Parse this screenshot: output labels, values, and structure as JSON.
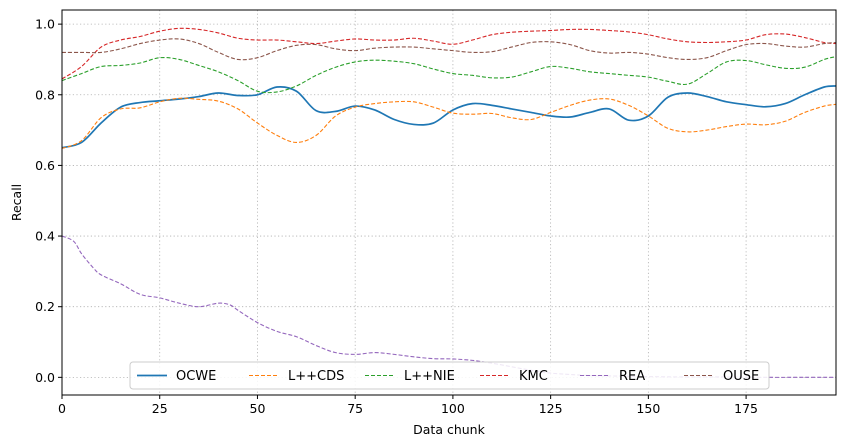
{
  "chart_data": {
    "type": "line",
    "title": "",
    "xlabel": "Data chunk",
    "ylabel": "Recall",
    "xlim": [
      0,
      198
    ],
    "ylim": [
      -0.05,
      1.04
    ],
    "xticks": [
      0,
      25,
      50,
      75,
      100,
      125,
      150,
      175
    ],
    "xtick_labels": [
      "0",
      "25",
      "50",
      "75",
      "100",
      "125",
      "150",
      "175"
    ],
    "yticks": [
      0.0,
      0.2,
      0.4,
      0.6,
      0.8,
      1.0
    ],
    "ytick_labels": [
      "0.0",
      "0.2",
      "0.4",
      "0.6",
      "0.8",
      "1.0"
    ],
    "grid": true,
    "legend_position": "bottom-center",
    "series": [
      {
        "name": "OCWE",
        "color": "#1f77b4",
        "style": "solid",
        "points": [
          [
            0,
            0.65
          ],
          [
            5,
            0.665
          ],
          [
            10,
            0.72
          ],
          [
            15,
            0.765
          ],
          [
            20,
            0.778
          ],
          [
            25,
            0.783
          ],
          [
            30,
            0.788
          ],
          [
            35,
            0.795
          ],
          [
            40,
            0.805
          ],
          [
            45,
            0.798
          ],
          [
            50,
            0.8
          ],
          [
            55,
            0.822
          ],
          [
            60,
            0.81
          ],
          [
            65,
            0.755
          ],
          [
            70,
            0.753
          ],
          [
            75,
            0.768
          ],
          [
            80,
            0.757
          ],
          [
            85,
            0.73
          ],
          [
            90,
            0.716
          ],
          [
            95,
            0.72
          ],
          [
            100,
            0.757
          ],
          [
            105,
            0.775
          ],
          [
            110,
            0.77
          ],
          [
            115,
            0.76
          ],
          [
            120,
            0.75
          ],
          [
            125,
            0.74
          ],
          [
            130,
            0.737
          ],
          [
            135,
            0.75
          ],
          [
            140,
            0.76
          ],
          [
            145,
            0.728
          ],
          [
            150,
            0.74
          ],
          [
            155,
            0.793
          ],
          [
            160,
            0.805
          ],
          [
            165,
            0.795
          ],
          [
            170,
            0.78
          ],
          [
            175,
            0.772
          ],
          [
            180,
            0.766
          ],
          [
            185,
            0.775
          ],
          [
            190,
            0.8
          ],
          [
            195,
            0.822
          ],
          [
            198,
            0.825
          ]
        ]
      },
      {
        "name": "L++CDS",
        "color": "#ff7f0e",
        "style": "dashed",
        "points": [
          [
            0,
            0.648
          ],
          [
            5,
            0.67
          ],
          [
            10,
            0.735
          ],
          [
            15,
            0.76
          ],
          [
            20,
            0.763
          ],
          [
            25,
            0.78
          ],
          [
            30,
            0.79
          ],
          [
            35,
            0.787
          ],
          [
            40,
            0.782
          ],
          [
            45,
            0.76
          ],
          [
            50,
            0.72
          ],
          [
            55,
            0.685
          ],
          [
            60,
            0.665
          ],
          [
            65,
            0.685
          ],
          [
            70,
            0.74
          ],
          [
            75,
            0.765
          ],
          [
            80,
            0.775
          ],
          [
            85,
            0.78
          ],
          [
            90,
            0.78
          ],
          [
            95,
            0.765
          ],
          [
            100,
            0.748
          ],
          [
            105,
            0.745
          ],
          [
            110,
            0.747
          ],
          [
            115,
            0.735
          ],
          [
            120,
            0.73
          ],
          [
            125,
            0.75
          ],
          [
            130,
            0.77
          ],
          [
            135,
            0.785
          ],
          [
            140,
            0.788
          ],
          [
            145,
            0.77
          ],
          [
            150,
            0.74
          ],
          [
            155,
            0.705
          ],
          [
            160,
            0.695
          ],
          [
            165,
            0.7
          ],
          [
            170,
            0.71
          ],
          [
            175,
            0.717
          ],
          [
            180,
            0.715
          ],
          [
            185,
            0.725
          ],
          [
            190,
            0.75
          ],
          [
            195,
            0.768
          ],
          [
            198,
            0.773
          ]
        ]
      },
      {
        "name": "L++NIE",
        "color": "#2ca02c",
        "style": "dashed",
        "points": [
          [
            0,
            0.84
          ],
          [
            5,
            0.86
          ],
          [
            10,
            0.88
          ],
          [
            15,
            0.883
          ],
          [
            20,
            0.89
          ],
          [
            25,
            0.905
          ],
          [
            30,
            0.9
          ],
          [
            35,
            0.883
          ],
          [
            40,
            0.865
          ],
          [
            45,
            0.84
          ],
          [
            50,
            0.81
          ],
          [
            55,
            0.808
          ],
          [
            60,
            0.825
          ],
          [
            65,
            0.855
          ],
          [
            70,
            0.878
          ],
          [
            75,
            0.893
          ],
          [
            80,
            0.898
          ],
          [
            85,
            0.895
          ],
          [
            90,
            0.888
          ],
          [
            95,
            0.873
          ],
          [
            100,
            0.86
          ],
          [
            105,
            0.855
          ],
          [
            110,
            0.848
          ],
          [
            115,
            0.85
          ],
          [
            120,
            0.865
          ],
          [
            125,
            0.88
          ],
          [
            130,
            0.875
          ],
          [
            135,
            0.865
          ],
          [
            140,
            0.86
          ],
          [
            145,
            0.855
          ],
          [
            150,
            0.85
          ],
          [
            155,
            0.838
          ],
          [
            160,
            0.83
          ],
          [
            165,
            0.86
          ],
          [
            170,
            0.893
          ],
          [
            175,
            0.897
          ],
          [
            180,
            0.885
          ],
          [
            185,
            0.875
          ],
          [
            190,
            0.878
          ],
          [
            195,
            0.9
          ],
          [
            198,
            0.908
          ]
        ]
      },
      {
        "name": "KMC",
        "color": "#d62728",
        "style": "dashed",
        "points": [
          [
            0,
            0.845
          ],
          [
            5,
            0.88
          ],
          [
            10,
            0.935
          ],
          [
            15,
            0.955
          ],
          [
            20,
            0.965
          ],
          [
            25,
            0.98
          ],
          [
            30,
            0.988
          ],
          [
            35,
            0.985
          ],
          [
            40,
            0.975
          ],
          [
            45,
            0.96
          ],
          [
            50,
            0.955
          ],
          [
            55,
            0.955
          ],
          [
            60,
            0.95
          ],
          [
            65,
            0.945
          ],
          [
            70,
            0.952
          ],
          [
            75,
            0.958
          ],
          [
            80,
            0.955
          ],
          [
            85,
            0.955
          ],
          [
            90,
            0.96
          ],
          [
            95,
            0.952
          ],
          [
            100,
            0.943
          ],
          [
            105,
            0.955
          ],
          [
            110,
            0.97
          ],
          [
            115,
            0.977
          ],
          [
            120,
            0.98
          ],
          [
            125,
            0.982
          ],
          [
            130,
            0.985
          ],
          [
            135,
            0.985
          ],
          [
            140,
            0.982
          ],
          [
            145,
            0.978
          ],
          [
            150,
            0.97
          ],
          [
            155,
            0.958
          ],
          [
            160,
            0.95
          ],
          [
            165,
            0.948
          ],
          [
            170,
            0.95
          ],
          [
            175,
            0.955
          ],
          [
            180,
            0.97
          ],
          [
            185,
            0.972
          ],
          [
            190,
            0.962
          ],
          [
            195,
            0.948
          ],
          [
            198,
            0.945
          ]
        ]
      },
      {
        "name": "REA",
        "color": "#9467bd",
        "style": "dashed",
        "points": [
          [
            0,
            0.4
          ],
          [
            3,
            0.385
          ],
          [
            5,
            0.35
          ],
          [
            8,
            0.31
          ],
          [
            10,
            0.29
          ],
          [
            15,
            0.265
          ],
          [
            20,
            0.235
          ],
          [
            25,
            0.225
          ],
          [
            30,
            0.21
          ],
          [
            35,
            0.2
          ],
          [
            40,
            0.21
          ],
          [
            43,
            0.205
          ],
          [
            45,
            0.19
          ],
          [
            50,
            0.155
          ],
          [
            55,
            0.13
          ],
          [
            60,
            0.115
          ],
          [
            65,
            0.09
          ],
          [
            70,
            0.07
          ],
          [
            75,
            0.065
          ],
          [
            80,
            0.07
          ],
          [
            85,
            0.065
          ],
          [
            90,
            0.058
          ],
          [
            95,
            0.053
          ],
          [
            100,
            0.052
          ],
          [
            105,
            0.048
          ],
          [
            110,
            0.04
          ],
          [
            115,
            0.03
          ],
          [
            120,
            0.02
          ],
          [
            125,
            0.012
          ],
          [
            130,
            0.008
          ],
          [
            135,
            0.005
          ],
          [
            140,
            0.004
          ],
          [
            145,
            0.003
          ],
          [
            150,
            0.002
          ],
          [
            160,
            0.001
          ],
          [
            170,
            0.001
          ],
          [
            180,
            0.0
          ],
          [
            190,
            0.0
          ],
          [
            198,
            0.0
          ]
        ]
      },
      {
        "name": "OUSE",
        "color": "#8c564b",
        "style": "dashed",
        "points": [
          [
            0,
            0.92
          ],
          [
            5,
            0.92
          ],
          [
            10,
            0.92
          ],
          [
            15,
            0.93
          ],
          [
            20,
            0.945
          ],
          [
            25,
            0.955
          ],
          [
            30,
            0.958
          ],
          [
            35,
            0.945
          ],
          [
            40,
            0.92
          ],
          [
            45,
            0.9
          ],
          [
            50,
            0.905
          ],
          [
            55,
            0.925
          ],
          [
            60,
            0.94
          ],
          [
            65,
            0.942
          ],
          [
            70,
            0.93
          ],
          [
            75,
            0.925
          ],
          [
            80,
            0.932
          ],
          [
            85,
            0.935
          ],
          [
            90,
            0.935
          ],
          [
            95,
            0.93
          ],
          [
            100,
            0.925
          ],
          [
            105,
            0.92
          ],
          [
            110,
            0.922
          ],
          [
            115,
            0.935
          ],
          [
            120,
            0.948
          ],
          [
            125,
            0.95
          ],
          [
            130,
            0.942
          ],
          [
            135,
            0.925
          ],
          [
            140,
            0.918
          ],
          [
            145,
            0.92
          ],
          [
            150,
            0.915
          ],
          [
            155,
            0.905
          ],
          [
            160,
            0.9
          ],
          [
            165,
            0.905
          ],
          [
            170,
            0.925
          ],
          [
            175,
            0.942
          ],
          [
            180,
            0.945
          ],
          [
            185,
            0.938
          ],
          [
            190,
            0.935
          ],
          [
            195,
            0.945
          ],
          [
            198,
            0.948
          ]
        ]
      }
    ]
  }
}
